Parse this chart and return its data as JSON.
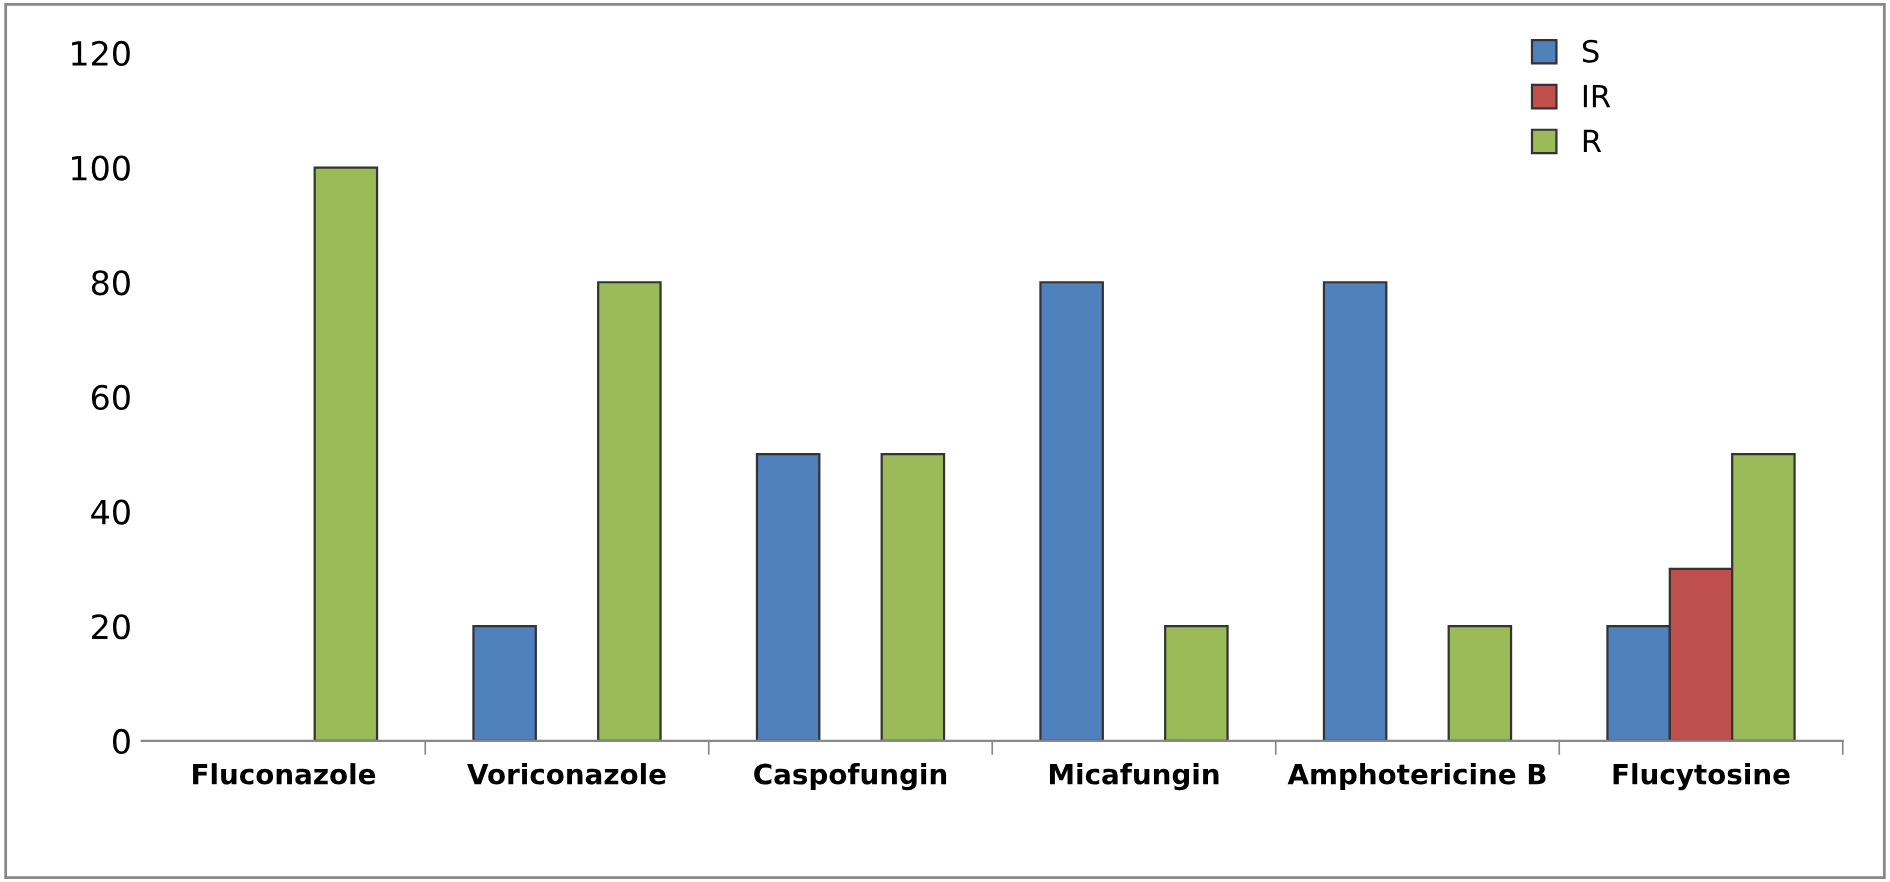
{
  "chart_data": {
    "type": "bar",
    "categories": [
      "Fluconazole",
      "Voriconazole",
      "Caspofungin",
      "Micafungin",
      "Amphotericine B",
      "Flucytosine"
    ],
    "series": [
      {
        "name": "S",
        "color": "#4f81bd",
        "values": [
          null,
          20,
          50,
          80,
          80,
          20
        ]
      },
      {
        "name": "IR",
        "color": "#c0504d",
        "values": [
          null,
          null,
          null,
          null,
          null,
          30
        ]
      },
      {
        "name": "R",
        "color": "#9bbb59",
        "values": [
          100,
          80,
          50,
          20,
          20,
          50
        ]
      }
    ],
    "ylim": [
      0,
      120
    ],
    "yticks": [
      0,
      20,
      40,
      60,
      80,
      100,
      120
    ],
    "grid": false,
    "legend": "top right"
  }
}
